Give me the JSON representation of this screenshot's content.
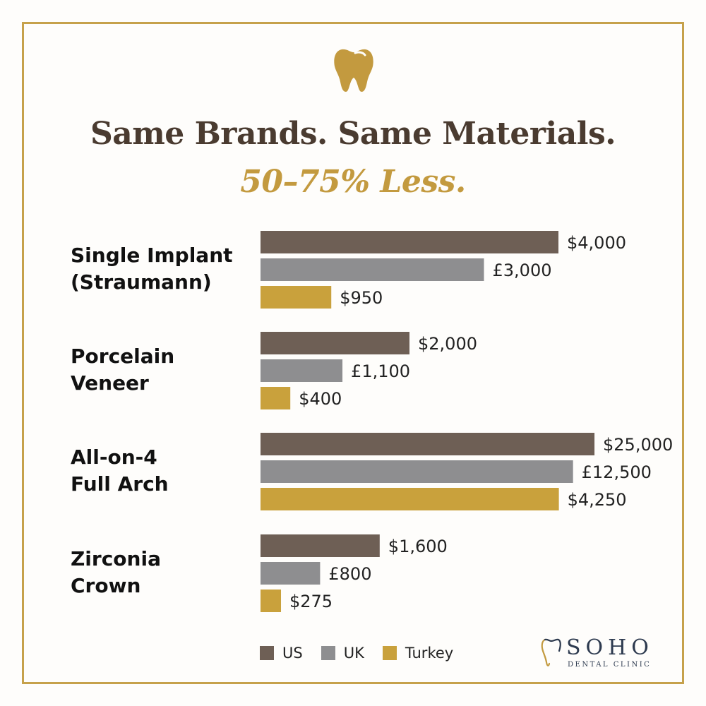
{
  "header": {
    "title": "Same Brands. Same Materials.",
    "subtitle": "50–75% Less."
  },
  "colors": {
    "border": "#c6a14b",
    "us": "#6e5f55",
    "uk": "#8e8e90",
    "turkey": "#c9a13c",
    "title": "#4a3b30",
    "subtitle": "#c39a3f"
  },
  "icons": {
    "header_icon": "tooth-icon",
    "logo_icon": "tooth-outline-icon"
  },
  "chart_data": {
    "type": "bar",
    "orientation": "horizontal",
    "categories": [
      [
        "Single Implant",
        "(Straumann)"
      ],
      [
        "Porcelain",
        "Veneer"
      ],
      [
        "All-on-4",
        "Full Arch"
      ],
      [
        "Zirconia",
        "Crown"
      ]
    ],
    "series": [
      {
        "name": "US",
        "values": [
          4000,
          2000,
          25000,
          1600
        ],
        "labels": [
          "$4,000",
          "$2,000",
          "$25,000",
          "$1,600"
        ]
      },
      {
        "name": "UK",
        "values": [
          3000,
          1100,
          12500,
          800
        ],
        "labels": [
          "£3,000",
          "£1,100",
          "£12,500",
          "£800"
        ]
      },
      {
        "name": "Turkey",
        "values": [
          950,
          400,
          4250,
          275
        ],
        "labels": [
          "$950",
          "$400",
          "$4,250",
          "$275"
        ]
      }
    ],
    "legend_position": "bottom"
  },
  "legend": {
    "items": [
      "US",
      "UK",
      "Turkey"
    ]
  },
  "logo": {
    "name": "SOHO",
    "sub": "DENTAL CLINIC"
  }
}
